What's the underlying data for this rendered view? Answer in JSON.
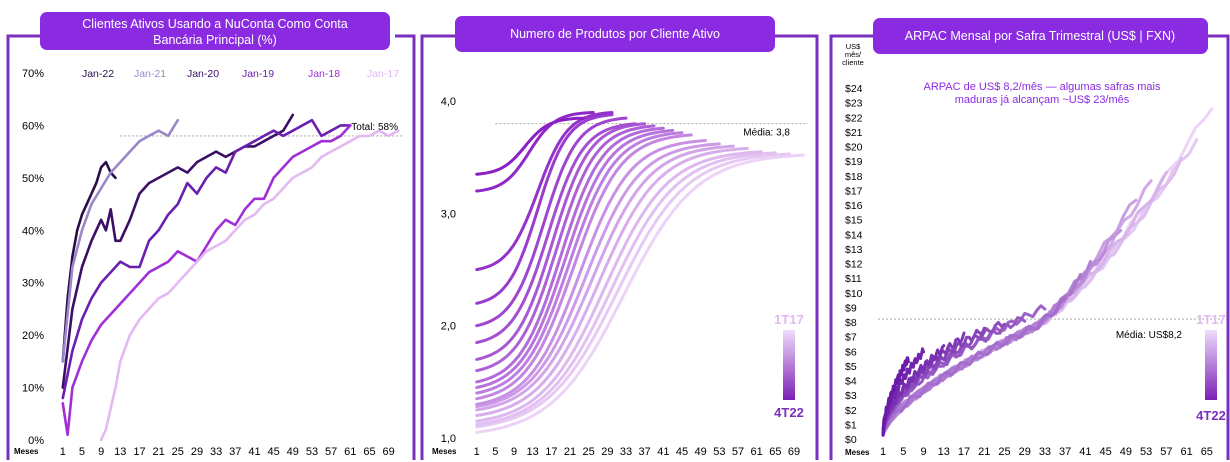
{
  "chart_data": [
    {
      "type": "line",
      "title": "Clientes Ativos Usando a NuConta Como Conta Bancária Principal (%)",
      "xlabel": "Meses",
      "x_ticks": [
        "1",
        "5",
        "9",
        "13",
        "17",
        "21",
        "25",
        "29",
        "33",
        "37",
        "41",
        "45",
        "49",
        "53",
        "57",
        "61",
        "65",
        "69"
      ],
      "xlim": [
        0,
        72
      ],
      "y_ticks": [
        "0%",
        "10%",
        "20%",
        "30%",
        "40%",
        "50%",
        "60%",
        "70%"
      ],
      "ylim": [
        0,
        70
      ],
      "legend_position": "top",
      "reference": {
        "value": 58,
        "label": "Total: 58%"
      },
      "series": [
        {
          "name": "Jan-22",
          "color": "#2a0f4a",
          "points": [
            [
              1,
              15
            ],
            [
              2,
              27
            ],
            [
              3,
              35
            ],
            [
              4,
              40
            ],
            [
              5,
              43
            ],
            [
              6,
              45
            ],
            [
              7,
              47
            ],
            [
              8,
              49
            ],
            [
              9,
              52
            ],
            [
              10,
              53
            ],
            [
              11,
              51
            ],
            [
              12,
              50
            ]
          ]
        },
        {
          "name": "Jan-21",
          "color": "#9b87c9",
          "points": [
            [
              1,
              15
            ],
            [
              3,
              33
            ],
            [
              5,
              40
            ],
            [
              7,
              45
            ],
            [
              9,
              48
            ],
            [
              11,
              51
            ],
            [
              13,
              53
            ],
            [
              15,
              55
            ],
            [
              17,
              57
            ],
            [
              19,
              58
            ],
            [
              21,
              59
            ],
            [
              23,
              58
            ],
            [
              25,
              61
            ]
          ]
        },
        {
          "name": "Jan-20",
          "color": "#3b0f66",
          "points": [
            [
              1,
              10
            ],
            [
              3,
              25
            ],
            [
              5,
              33
            ],
            [
              7,
              38
            ],
            [
              9,
              42
            ],
            [
              10,
              40
            ],
            [
              11,
              44
            ],
            [
              12,
              38
            ],
            [
              13,
              38
            ],
            [
              15,
              42
            ],
            [
              17,
              47
            ],
            [
              19,
              49
            ],
            [
              21,
              50
            ],
            [
              23,
              51
            ],
            [
              25,
              52
            ],
            [
              27,
              51
            ],
            [
              29,
              53
            ],
            [
              31,
              54
            ],
            [
              33,
              55
            ],
            [
              35,
              54
            ],
            [
              37,
              55
            ],
            [
              39,
              56
            ],
            [
              41,
              56
            ],
            [
              43,
              57
            ],
            [
              45,
              58
            ],
            [
              47,
              59
            ],
            [
              49,
              62
            ]
          ]
        },
        {
          "name": "Jan-19",
          "color": "#6a1fb0",
          "points": [
            [
              1,
              8
            ],
            [
              3,
              17
            ],
            [
              5,
              23
            ],
            [
              7,
              27
            ],
            [
              9,
              30
            ],
            [
              11,
              32
            ],
            [
              13,
              34
            ],
            [
              15,
              33
            ],
            [
              17,
              33
            ],
            [
              19,
              38
            ],
            [
              21,
              40
            ],
            [
              23,
              43
            ],
            [
              25,
              45
            ],
            [
              27,
              49
            ],
            [
              29,
              47
            ],
            [
              31,
              50
            ],
            [
              33,
              52
            ],
            [
              35,
              51
            ],
            [
              37,
              55
            ],
            [
              39,
              56
            ],
            [
              41,
              57
            ],
            [
              43,
              58
            ],
            [
              45,
              59
            ],
            [
              47,
              58
            ],
            [
              49,
              59
            ],
            [
              51,
              60
            ],
            [
              53,
              61
            ],
            [
              55,
              58
            ],
            [
              57,
              59
            ],
            [
              59,
              60
            ],
            [
              61,
              60
            ]
          ]
        },
        {
          "name": "Jan-18",
          "color": "#a12fd8",
          "points": [
            [
              1,
              7
            ],
            [
              2,
              1
            ],
            [
              3,
              10
            ],
            [
              5,
              15
            ],
            [
              7,
              19
            ],
            [
              9,
              22
            ],
            [
              11,
              24
            ],
            [
              13,
              26
            ],
            [
              15,
              28
            ],
            [
              17,
              30
            ],
            [
              19,
              32
            ],
            [
              21,
              33
            ],
            [
              23,
              34
            ],
            [
              25,
              36
            ],
            [
              27,
              35
            ],
            [
              29,
              34
            ],
            [
              31,
              37
            ],
            [
              33,
              40
            ],
            [
              35,
              42
            ],
            [
              37,
              41
            ],
            [
              39,
              44
            ],
            [
              41,
              46
            ],
            [
              43,
              46
            ],
            [
              45,
              50
            ],
            [
              47,
              52
            ],
            [
              49,
              54
            ],
            [
              51,
              55
            ],
            [
              53,
              56
            ],
            [
              55,
              57
            ],
            [
              57,
              57
            ],
            [
              59,
              58
            ],
            [
              61,
              60
            ]
          ]
        },
        {
          "name": "Jan-17",
          "color": "#e4b8f2",
          "points": [
            [
              9,
              0
            ],
            [
              10,
              2
            ],
            [
              11,
              6
            ],
            [
              12,
              10
            ],
            [
              13,
              15
            ],
            [
              15,
              20
            ],
            [
              17,
              23
            ],
            [
              19,
              25
            ],
            [
              21,
              27
            ],
            [
              23,
              28
            ],
            [
              25,
              30
            ],
            [
              27,
              32
            ],
            [
              29,
              34
            ],
            [
              31,
              36
            ],
            [
              33,
              37
            ],
            [
              35,
              38
            ],
            [
              37,
              40
            ],
            [
              39,
              42
            ],
            [
              41,
              43
            ],
            [
              43,
              45
            ],
            [
              45,
              46
            ],
            [
              47,
              48
            ],
            [
              49,
              50
            ],
            [
              51,
              51
            ],
            [
              53,
              52
            ],
            [
              55,
              54
            ],
            [
              57,
              55
            ],
            [
              59,
              56
            ],
            [
              61,
              57
            ],
            [
              63,
              58
            ],
            [
              65,
              58
            ],
            [
              67,
              59
            ],
            [
              69,
              58
            ],
            [
              71,
              59
            ]
          ]
        }
      ]
    },
    {
      "type": "line",
      "title": "Numero de Produtos por Cliente Ativo",
      "xlabel": "Meses",
      "x_ticks": [
        "1",
        "5",
        "9",
        "13",
        "17",
        "21",
        "25",
        "29",
        "33",
        "37",
        "41",
        "45",
        "49",
        "53",
        "57",
        "61",
        "65",
        "69"
      ],
      "xlim": [
        0,
        72
      ],
      "y_ticks": [
        "1,0",
        "2,0",
        "3,0",
        "4,0"
      ],
      "ylim": [
        1.0,
        4.1
      ],
      "reference": {
        "value": 3.8,
        "label": "Média: 3,8"
      },
      "gradient_legend": {
        "top": "1T17",
        "bottom": "4T22"
      },
      "cohorts": [
        {
          "start": 3.35,
          "cap": 3.85,
          "length": 24
        },
        {
          "start": 3.2,
          "cap": 3.9,
          "length": 26
        },
        {
          "start": 2.5,
          "cap": 3.9,
          "length": 30
        },
        {
          "start": 2.2,
          "cap": 3.88,
          "length": 30
        },
        {
          "start": 2.0,
          "cap": 3.85,
          "length": 33
        },
        {
          "start": 1.85,
          "cap": 3.8,
          "length": 35
        },
        {
          "start": 1.7,
          "cap": 3.8,
          "length": 37
        },
        {
          "start": 1.6,
          "cap": 3.78,
          "length": 39
        },
        {
          "start": 1.5,
          "cap": 3.76,
          "length": 41
        },
        {
          "start": 1.45,
          "cap": 3.74,
          "length": 43
        },
        {
          "start": 1.4,
          "cap": 3.72,
          "length": 45
        },
        {
          "start": 1.35,
          "cap": 3.7,
          "length": 47
        },
        {
          "start": 1.3,
          "cap": 3.65,
          "length": 50
        },
        {
          "start": 1.28,
          "cap": 3.62,
          "length": 53
        },
        {
          "start": 1.25,
          "cap": 3.6,
          "length": 56
        },
        {
          "start": 1.2,
          "cap": 3.58,
          "length": 59
        },
        {
          "start": 1.15,
          "cap": 3.55,
          "length": 62
        },
        {
          "start": 1.12,
          "cap": 3.54,
          "length": 65
        },
        {
          "start": 1.1,
          "cap": 3.53,
          "length": 68
        },
        {
          "start": 1.05,
          "cap": 3.52,
          "length": 71
        }
      ]
    },
    {
      "type": "line",
      "title": "ARPAC Mensal por Safra Trimestral (US$ | FXN)",
      "subtitle": "ARPAC de US$ 8,2/mês — algumas safras mais maduras já alcançam ~US$ 23/mês",
      "ylabel_lines": [
        "US$",
        "mês/",
        "cliente"
      ],
      "xlabel": "Meses",
      "x_ticks": [
        "1",
        "5",
        "9",
        "13",
        "17",
        "21",
        "25",
        "29",
        "33",
        "37",
        "41",
        "45",
        "49",
        "53",
        "57",
        "61",
        "65"
      ],
      "xlim": [
        0,
        68
      ],
      "y_ticks": [
        "$0",
        "$1",
        "$2",
        "$3",
        "$4",
        "$5",
        "$6",
        "$7",
        "$8",
        "$9",
        "$10",
        "$11",
        "$12",
        "$13",
        "$14",
        "$15",
        "$16",
        "$17",
        "$18",
        "$19",
        "$20",
        "$21",
        "$22",
        "$23",
        "$24"
      ],
      "ylim": [
        0,
        24
      ],
      "reference": {
        "value": 8.2,
        "label": "Média: US$8,2"
      },
      "gradient_legend": {
        "top": "1T17",
        "bottom": "4T22"
      },
      "cohorts": [
        {
          "length": 66,
          "end": 22.8
        },
        {
          "length": 63,
          "end": 20.5
        },
        {
          "length": 60,
          "end": 19.0
        },
        {
          "length": 57,
          "end": 18.0
        },
        {
          "length": 54,
          "end": 17.6
        },
        {
          "length": 51,
          "end": 16.5
        },
        {
          "length": 48,
          "end": 14.5
        },
        {
          "length": 45,
          "end": 13.0
        },
        {
          "length": 42,
          "end": 12.0
        },
        {
          "length": 40,
          "end": 11.0
        },
        {
          "length": 37,
          "end": 9.5
        },
        {
          "length": 33,
          "end": 9.0
        },
        {
          "length": 29,
          "end": 8.3
        },
        {
          "length": 25,
          "end": 8.0
        },
        {
          "length": 21,
          "end": 7.5
        },
        {
          "length": 17,
          "end": 7.0
        },
        {
          "length": 13,
          "end": 6.2
        },
        {
          "length": 9,
          "end": 6.0
        },
        {
          "length": 6,
          "end": 5.5
        }
      ]
    }
  ]
}
